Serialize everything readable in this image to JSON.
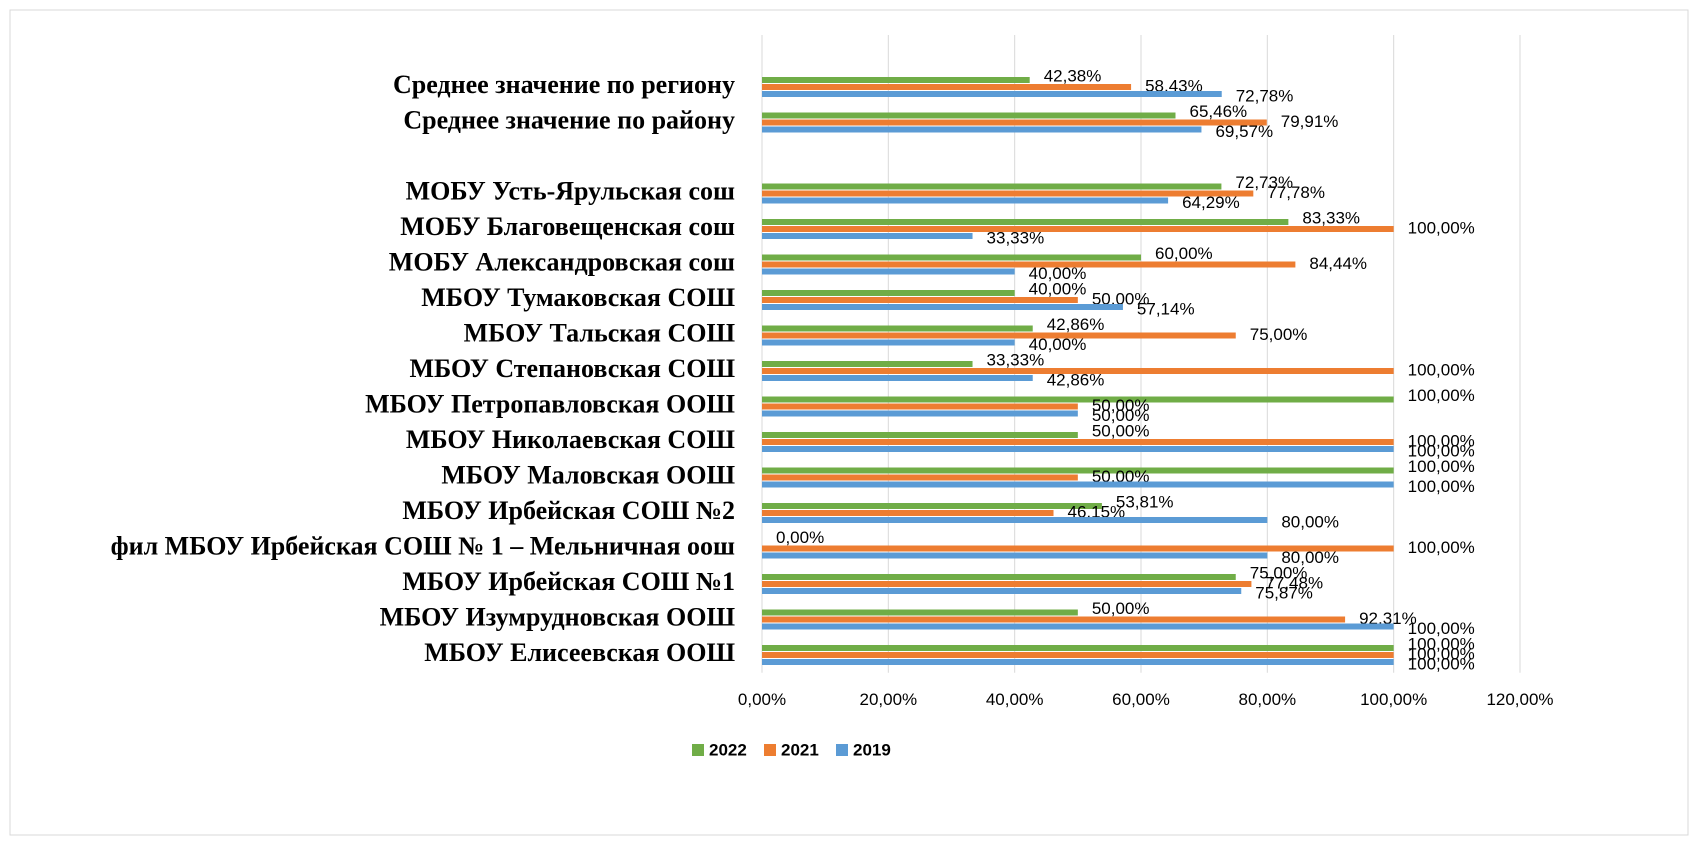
{
  "chart_data": {
    "type": "barh",
    "categories": [
      "Среднее значение по региону",
      "Среднее значение по району",
      null,
      "МОБУ Усть-Ярульская сош",
      "МОБУ Благовещенская сош",
      "МОБУ Александровская сош",
      "МБОУ Тумаковская СОШ",
      "МБОУ Тальская СОШ",
      "МБОУ Степановская СОШ",
      "МБОУ Петропавловская ООШ",
      "МБОУ Николаевская СОШ",
      "МБОУ Маловская ООШ",
      "МБОУ Ирбейская СОШ №2",
      "фил МБОУ Ирбейская СОШ № 1 – Мельничная оош",
      "МБОУ Ирбейская СОШ №1",
      "МБОУ Изумрудновская ООШ",
      "МБОУ Елисеевская ООШ"
    ],
    "series": [
      {
        "name": "2022",
        "color": "#70ad47",
        "values": [
          42.38,
          65.46,
          null,
          72.73,
          83.33,
          60,
          40,
          42.86,
          33.33,
          100,
          50,
          100,
          53.81,
          0,
          75,
          50,
          100
        ],
        "value_labels": [
          "42,38%",
          "65,46%",
          null,
          "72,73%",
          "83,33%",
          "60,00%",
          "40,00%",
          "42,86%",
          "33,33%",
          "100,00%",
          "50,00%",
          "100,00%",
          "53,81%",
          "0,00%",
          "75,00%",
          "50,00%",
          "100,00%"
        ]
      },
      {
        "name": "2021",
        "color": "#ed7d31",
        "values": [
          58.43,
          79.91,
          null,
          77.78,
          100,
          84.44,
          50,
          75,
          100,
          50,
          100,
          50,
          46.15,
          100,
          77.48,
          92.31,
          100
        ],
        "value_labels": [
          "58,43%",
          "79,91%",
          null,
          "77,78%",
          "100,00%",
          "84,44%",
          "50,00%",
          "75,00%",
          "100,00%",
          "50,00%",
          "100,00%",
          "50,00%",
          "46,15%",
          "100,00%",
          "77,48%",
          "92,31%",
          "100,00%"
        ]
      },
      {
        "name": "2019",
        "color": "#5b9bd5",
        "values": [
          72.78,
          69.57,
          null,
          64.29,
          33.33,
          40,
          57.14,
          40,
          42.86,
          50,
          100,
          100,
          80,
          80,
          75.87,
          100,
          100
        ],
        "value_labels": [
          "72,78%",
          "69,57%",
          null,
          "64,29%",
          "33,33%",
          "40,00%",
          "57,14%",
          "40,00%",
          "42,86%",
          "50,00%",
          "100,00%",
          "100,00%",
          "80,00%",
          "80,00%",
          "75,87%",
          "100,00%",
          "100,00%"
        ]
      }
    ],
    "xlim": [
      0,
      120
    ],
    "xticks": [
      {
        "value": 0,
        "label": "0,00%"
      },
      {
        "value": 20,
        "label": "20,00%"
      },
      {
        "value": 40,
        "label": "40,00%"
      },
      {
        "value": 60,
        "label": "60,00%"
      },
      {
        "value": 80,
        "label": "80,00%"
      },
      {
        "value": 100,
        "label": "100,00%"
      },
      {
        "value": 120,
        "label": "120,00%"
      }
    ],
    "grid": true,
    "legend": "bottom"
  }
}
